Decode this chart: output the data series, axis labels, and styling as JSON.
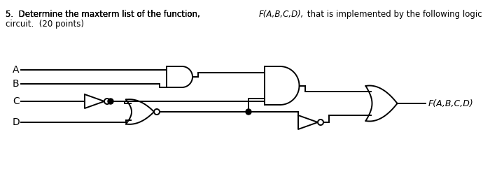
{
  "input_labels": [
    "A",
    "B",
    "C",
    "D"
  ],
  "output_label": "F(A,B,C,D)",
  "bg_color": "#ffffff",
  "line_color": "#000000",
  "lw": 1.4,
  "fig_width": 7.0,
  "fig_height": 2.49,
  "title_normal": "5.  Determine the maxterm list of the function, ",
  "title_italic": "F(A,B,C,D),",
  "title_normal2": " that is implemented by the following logic",
  "title_line2": "circuit.  (20 points)"
}
